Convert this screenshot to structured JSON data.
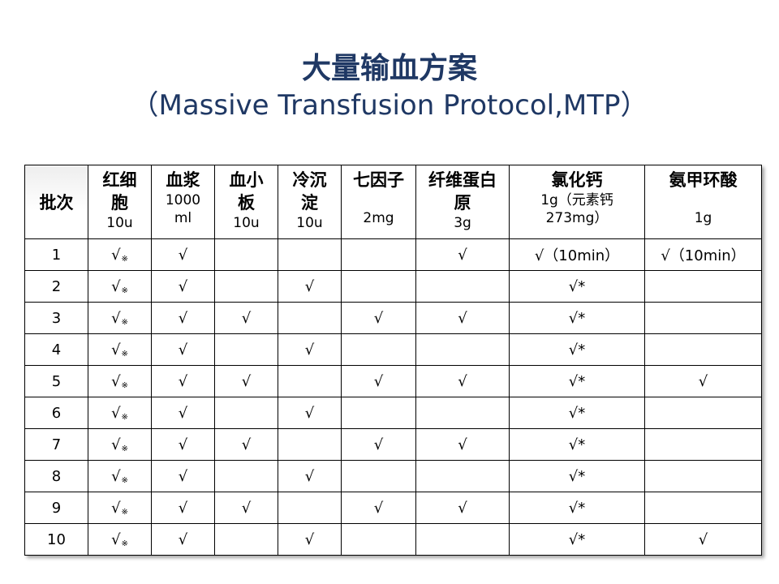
{
  "title": "大量输血方案",
  "subtitle": "（Massive Transfusion Protocol,MTP）",
  "table": {
    "corner": "批次",
    "columns": [
      {
        "name": "红细胞",
        "unit": "10u"
      },
      {
        "name": "血浆",
        "unit": "1000 ml"
      },
      {
        "name": "血小板",
        "unit": "10u"
      },
      {
        "name": "冷沉淀",
        "unit": "10u"
      },
      {
        "name": "七因子",
        "unit": "2mg"
      },
      {
        "name": "纤维蛋白原",
        "unit": "3g"
      },
      {
        "name": "氯化钙",
        "unit": "1g（元素钙273mg）"
      },
      {
        "name": "氨甲环酸",
        "unit": "1g"
      }
    ],
    "rows": [
      {
        "batch": "1",
        "cells": [
          "√※",
          "√",
          "",
          "",
          "",
          "√",
          "√（10min）",
          "√（10min）"
        ]
      },
      {
        "batch": "2",
        "cells": [
          "√※",
          "√",
          "",
          "√",
          "",
          "",
          "√*",
          ""
        ]
      },
      {
        "batch": "3",
        "cells": [
          "√※",
          "√",
          "√",
          "",
          "√",
          "√",
          "√*",
          ""
        ]
      },
      {
        "batch": "4",
        "cells": [
          "√※",
          "√",
          "",
          "√",
          "",
          "",
          "√*",
          ""
        ]
      },
      {
        "batch": "5",
        "cells": [
          "√※",
          "√",
          "√",
          "",
          "√",
          "√",
          "√*",
          "√"
        ]
      },
      {
        "batch": "6",
        "cells": [
          "√※",
          "√",
          "",
          "√",
          "",
          "",
          "√*",
          ""
        ]
      },
      {
        "batch": "7",
        "cells": [
          "√※",
          "√",
          "√",
          "",
          "√",
          "√",
          "√*",
          ""
        ]
      },
      {
        "batch": "8",
        "cells": [
          "√※",
          "√",
          "",
          "√",
          "",
          "",
          "√*",
          ""
        ]
      },
      {
        "batch": "9",
        "cells": [
          "√※",
          "√",
          "√",
          "",
          "√",
          "√",
          "√*",
          ""
        ]
      },
      {
        "batch": "10",
        "cells": [
          "√※",
          "√",
          "",
          "√",
          "",
          "",
          "√*",
          "√"
        ]
      }
    ]
  }
}
